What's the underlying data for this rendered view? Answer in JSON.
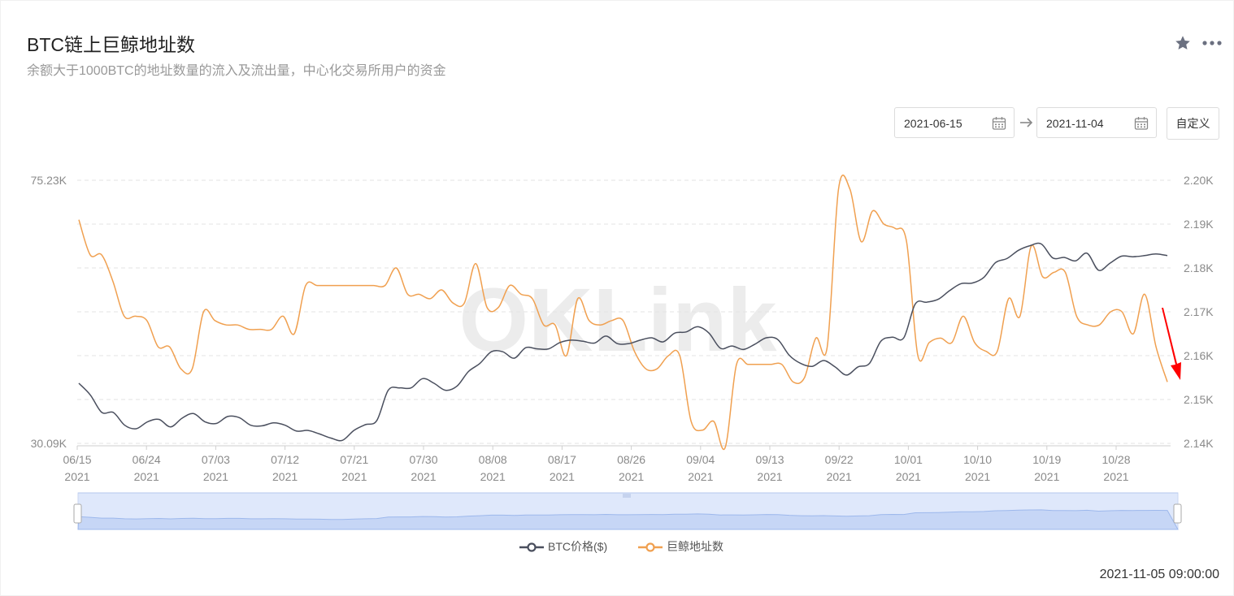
{
  "header": {
    "title": "BTC链上巨鲸地址数",
    "subtitle": "余额大于1000BTC的地址数量的流入及流出量，中心化交易所用户的资金",
    "star_icon": "star-icon",
    "more_icon": "more-icon"
  },
  "date_range": {
    "start": "2021-06-15",
    "end": "2021-11-04",
    "custom_label": "自定义",
    "calendar_icon": "calendar-icon",
    "arrow_icon": "arrow-right-icon"
  },
  "footer": {
    "timestamp": "2021-11-05 09:00:00"
  },
  "colors": {
    "btc": "#4a4f5e",
    "whale": "#f0a050",
    "grid": "#e3e3e3",
    "axis_text": "#8a8a8a",
    "zoom_fill": "#dfe8fb",
    "annotation": "#ff0000"
  },
  "chart_data": {
    "type": "line",
    "title": "",
    "watermark": "OKLink",
    "x_ticks": [
      [
        "06/15",
        "2021"
      ],
      [
        "06/24",
        "2021"
      ],
      [
        "07/03",
        "2021"
      ],
      [
        "07/12",
        "2021"
      ],
      [
        "07/21",
        "2021"
      ],
      [
        "07/30",
        "2021"
      ],
      [
        "08/08",
        "2021"
      ],
      [
        "08/17",
        "2021"
      ],
      [
        "08/26",
        "2021"
      ],
      [
        "09/04",
        "2021"
      ],
      [
        "09/13",
        "2021"
      ],
      [
        "09/22",
        "2021"
      ],
      [
        "10/01",
        "2021"
      ],
      [
        "10/10",
        "2021"
      ],
      [
        "10/19",
        "2021"
      ],
      [
        "10/28",
        "2021"
      ]
    ],
    "left_axis": {
      "ticks": [
        "75.23K",
        "30.09K"
      ],
      "min": 30.09,
      "max": 75.23,
      "unit": "K"
    },
    "right_axis": {
      "ticks": [
        "2.20K",
        "2.19K",
        "2.18K",
        "2.17K",
        "2.16K",
        "2.15K",
        "2.14K"
      ],
      "min": 2.14,
      "max": 2.2,
      "unit": "K"
    },
    "legend": [
      "BTC价格($)",
      "巨鲸地址数"
    ],
    "series": [
      {
        "name": "BTC价格($)",
        "axis": "left",
        "values": [
          40.4,
          38.4,
          35.4,
          35.4,
          33.2,
          32.6,
          33.8,
          34.2,
          32.9,
          34.4,
          35.2,
          33.8,
          33.5,
          34.7,
          34.5,
          33.2,
          33.1,
          33.6,
          33.2,
          32.2,
          32.3,
          31.7,
          31.0,
          30.6,
          32.3,
          33.3,
          34.0,
          39.2,
          39.6,
          39.6,
          41.2,
          40.4,
          39.2,
          39.9,
          42.4,
          43.8,
          45.8,
          45.8,
          44.7,
          46.5,
          46.3,
          46.3,
          47.4,
          47.8,
          47.6,
          47.3,
          48.5,
          47.2,
          47.2,
          47.8,
          48.2,
          47.5,
          49.0,
          49.2,
          50.1,
          49.0,
          46.4,
          46.8,
          46.2,
          47.1,
          48.2,
          47.9,
          45.2,
          43.8,
          43.3,
          44.3,
          43.2,
          41.8,
          43.2,
          43.8,
          47.6,
          48.3,
          48.2,
          54.0,
          54.3,
          54.8,
          56.3,
          57.5,
          57.6,
          58.6,
          61.1,
          61.8,
          63.2,
          64.0,
          64.3,
          61.9,
          62.0,
          61.4,
          62.7,
          59.8,
          61.0,
          62.2,
          62.1,
          62.3,
          62.6,
          62.3
        ]
      },
      {
        "name": "巨鲸地址数",
        "axis": "right",
        "values": [
          2.191,
          2.183,
          2.183,
          2.177,
          2.169,
          2.169,
          2.168,
          2.162,
          2.162,
          2.157,
          2.157,
          2.17,
          2.168,
          2.167,
          2.167,
          2.166,
          2.166,
          2.166,
          2.169,
          2.165,
          2.176,
          2.176,
          2.176,
          2.176,
          2.176,
          2.176,
          2.176,
          2.176,
          2.18,
          2.174,
          2.174,
          2.173,
          2.175,
          2.172,
          2.172,
          2.181,
          2.171,
          2.171,
          2.176,
          2.174,
          2.173,
          2.167,
          2.167,
          2.16,
          2.173,
          2.168,
          2.167,
          2.168,
          2.168,
          2.161,
          2.157,
          2.157,
          2.16,
          2.16,
          2.145,
          2.143,
          2.145,
          2.139,
          2.158,
          2.158,
          2.158,
          2.158,
          2.158,
          2.154,
          2.155,
          2.164,
          2.162,
          2.198,
          2.198,
          2.186,
          2.193,
          2.19,
          2.189,
          2.186,
          2.16,
          2.163,
          2.164,
          2.163,
          2.169,
          2.163,
          2.161,
          2.161,
          2.173,
          2.169,
          2.185,
          2.178,
          2.179,
          2.179,
          2.169,
          2.167,
          2.167,
          2.17,
          2.17,
          2.165,
          2.174,
          2.162,
          2.154
        ]
      }
    ],
    "annotation": "red-arrow-pointing-down",
    "zoom_range": [
      "0%",
      "100%"
    ],
    "grid": true
  }
}
